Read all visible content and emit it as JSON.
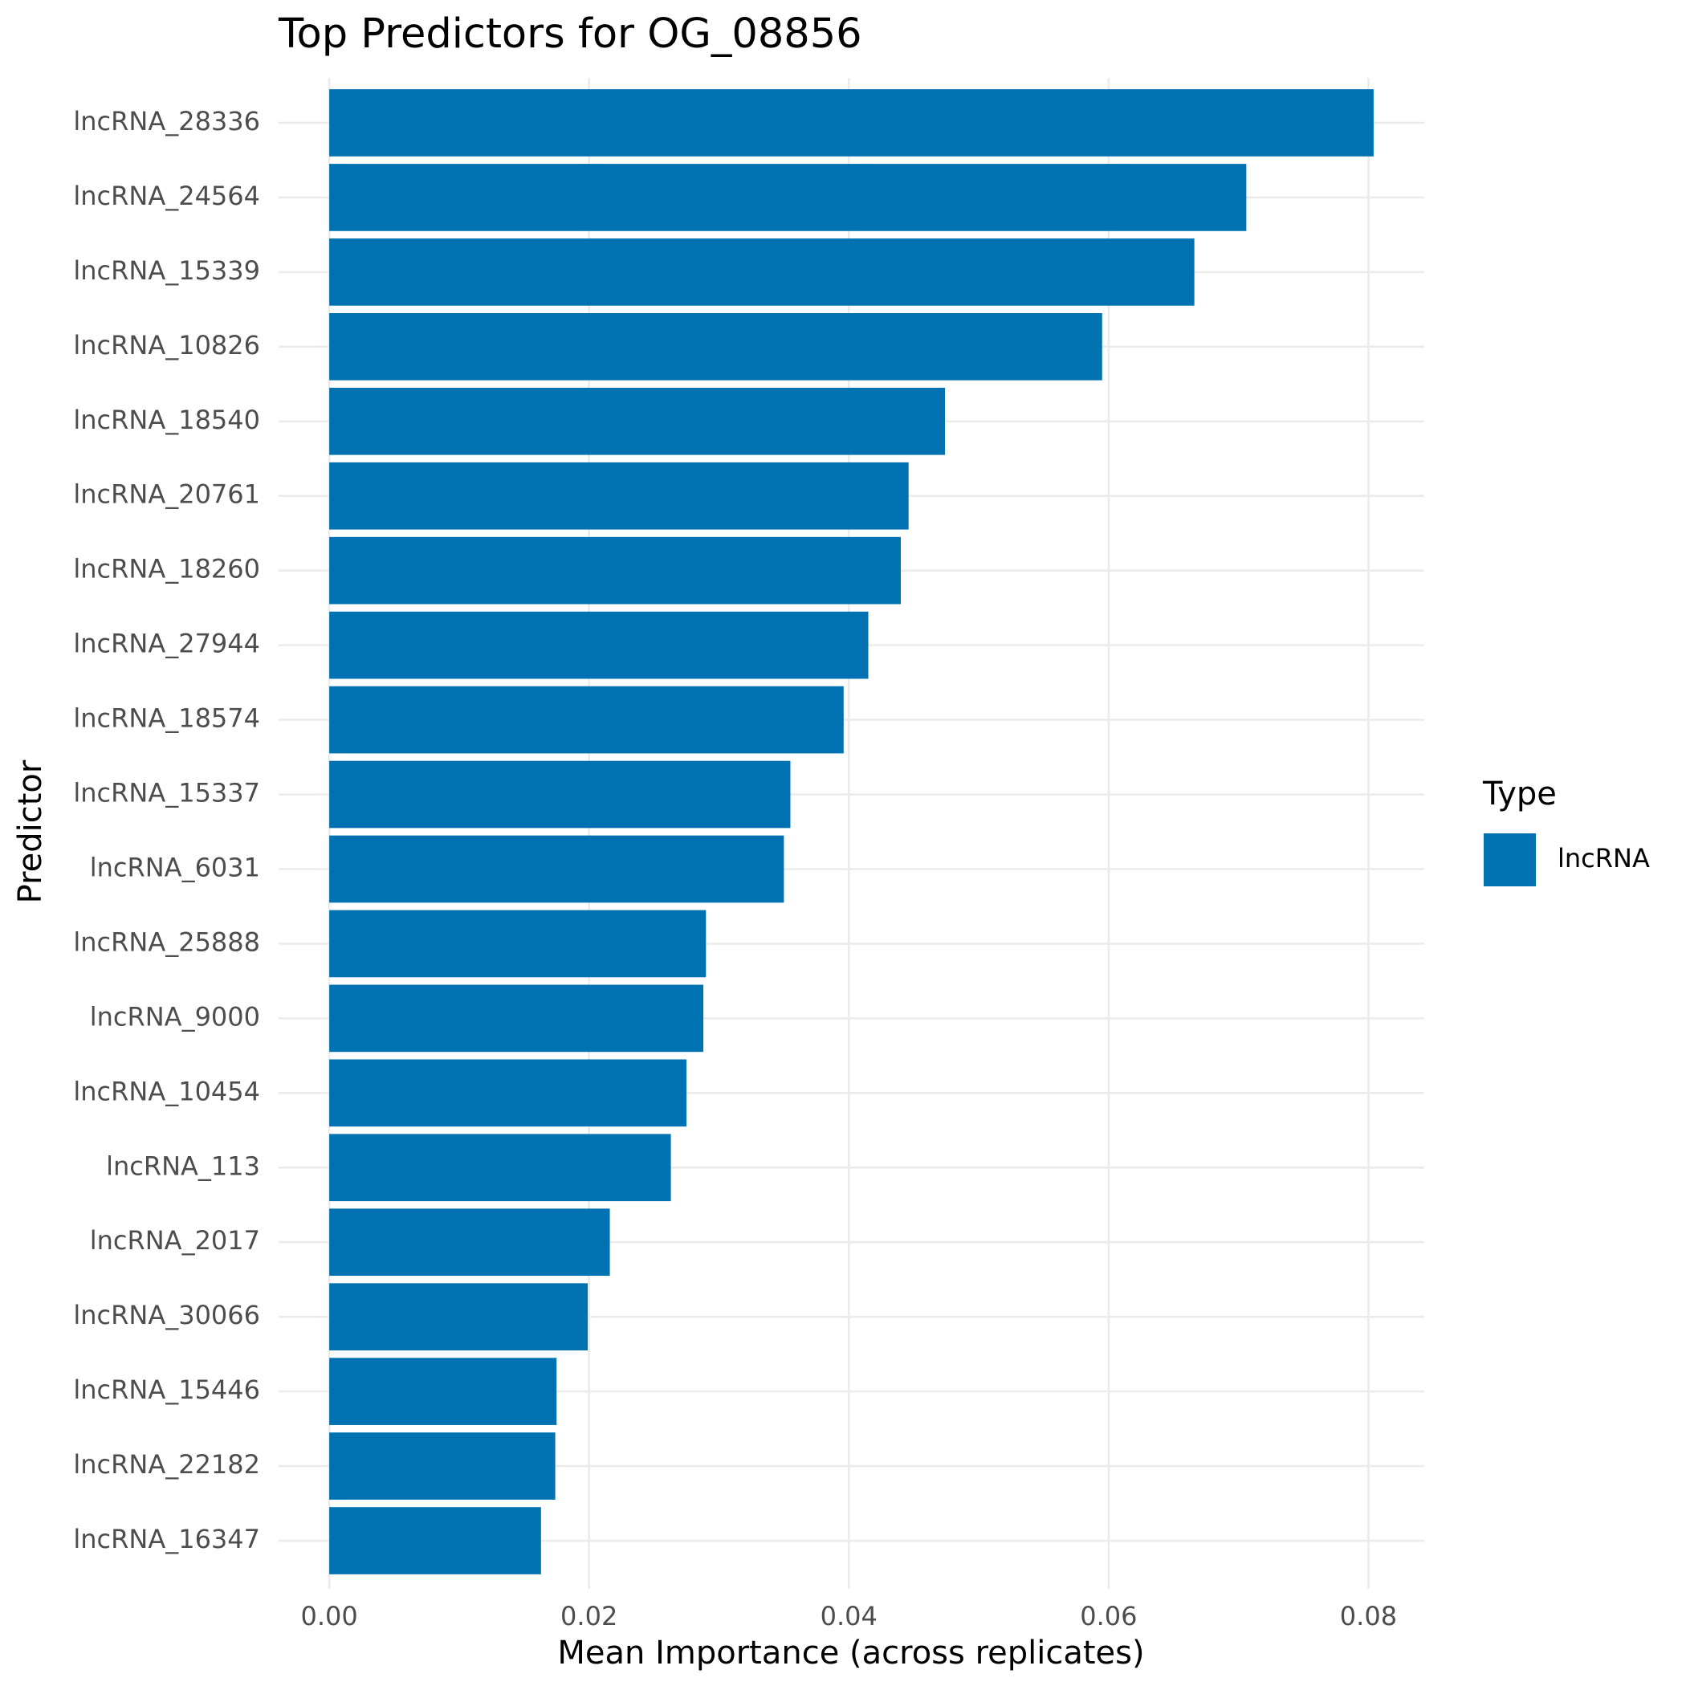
{
  "chart_data": {
    "type": "barh",
    "title": "Top Predictors for OG_08856",
    "x_label": "Mean Importance (across replicates)",
    "y_label": "Predictor",
    "legend_title": "Type",
    "legend_position": "right",
    "grid": true,
    "categories": [
      "lncRNA_28336",
      "lncRNA_24564",
      "lncRNA_15339",
      "lncRNA_10826",
      "lncRNA_18540",
      "lncRNA_20761",
      "lncRNA_18260",
      "lncRNA_27944",
      "lncRNA_18574",
      "lncRNA_15337",
      "lncRNA_6031",
      "lncRNA_25888",
      "lncRNA_9000",
      "lncRNA_10454",
      "lncRNA_113",
      "lncRNA_2017",
      "lncRNA_30066",
      "lncRNA_15446",
      "lncRNA_22182",
      "lncRNA_16347"
    ],
    "series": [
      {
        "name": "lncRNA",
        "color": "#0072b2",
        "values": [
          0.0804,
          0.0706,
          0.0666,
          0.0595,
          0.0474,
          0.0446,
          0.044,
          0.0415,
          0.0396,
          0.0355,
          0.035,
          0.029,
          0.0288,
          0.0275,
          0.0263,
          0.0216,
          0.0199,
          0.0175,
          0.0174,
          0.0163
        ]
      }
    ],
    "xlim": [
      -0.0039,
      0.0843
    ],
    "xticks": [
      {
        "value": 0,
        "label": "0.00"
      },
      0.02,
      0.04,
      0.06,
      0.08
    ]
  }
}
